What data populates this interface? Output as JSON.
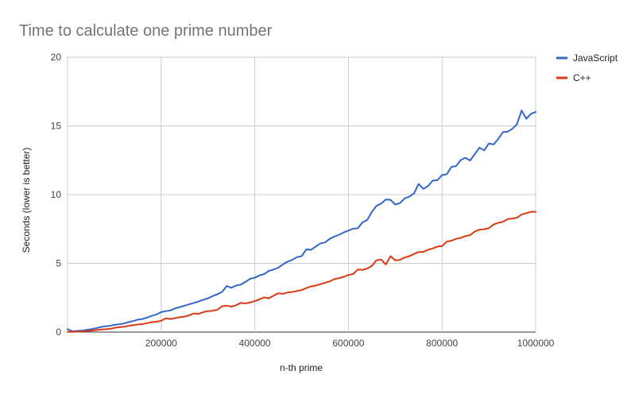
{
  "chart_data": {
    "type": "line",
    "title": "Time to calculate one prime number",
    "xlabel": "n-th prime",
    "ylabel": "Seconds (lower is better)",
    "xlim": [
      0,
      1000000
    ],
    "ylim": [
      0,
      20
    ],
    "xticks": [
      200000,
      400000,
      600000,
      800000,
      1000000
    ],
    "yticks": [
      0,
      5,
      10,
      15,
      20
    ],
    "grid": true,
    "legend_position": "right-top",
    "series": [
      {
        "name": "JavaScript",
        "color": "#3366cc",
        "points": [
          [
            0,
            0.2
          ],
          [
            10000,
            0.06
          ],
          [
            20000,
            0.08
          ],
          [
            30000,
            0.1
          ],
          [
            40000,
            0.15
          ],
          [
            50000,
            0.2
          ],
          [
            60000,
            0.27
          ],
          [
            70000,
            0.35
          ],
          [
            80000,
            0.42
          ],
          [
            90000,
            0.45
          ],
          [
            100000,
            0.52
          ],
          [
            110000,
            0.56
          ],
          [
            120000,
            0.62
          ],
          [
            130000,
            0.72
          ],
          [
            140000,
            0.8
          ],
          [
            150000,
            0.9
          ],
          [
            160000,
            0.95
          ],
          [
            170000,
            1.05
          ],
          [
            180000,
            1.18
          ],
          [
            190000,
            1.28
          ],
          [
            200000,
            1.45
          ],
          [
            210000,
            1.52
          ],
          [
            220000,
            1.58
          ],
          [
            230000,
            1.72
          ],
          [
            240000,
            1.82
          ],
          [
            250000,
            1.92
          ],
          [
            260000,
            2.02
          ],
          [
            270000,
            2.12
          ],
          [
            280000,
            2.22
          ],
          [
            290000,
            2.35
          ],
          [
            300000,
            2.45
          ],
          [
            310000,
            2.62
          ],
          [
            320000,
            2.75
          ],
          [
            330000,
            2.92
          ],
          [
            340000,
            3.35
          ],
          [
            350000,
            3.22
          ],
          [
            360000,
            3.38
          ],
          [
            370000,
            3.45
          ],
          [
            380000,
            3.65
          ],
          [
            390000,
            3.88
          ],
          [
            400000,
            3.95
          ],
          [
            410000,
            4.12
          ],
          [
            420000,
            4.22
          ],
          [
            430000,
            4.45
          ],
          [
            440000,
            4.55
          ],
          [
            450000,
            4.68
          ],
          [
            460000,
            4.92
          ],
          [
            470000,
            5.12
          ],
          [
            480000,
            5.25
          ],
          [
            490000,
            5.45
          ],
          [
            500000,
            5.52
          ],
          [
            510000,
            6.02
          ],
          [
            520000,
            5.98
          ],
          [
            530000,
            6.22
          ],
          [
            540000,
            6.45
          ],
          [
            550000,
            6.52
          ],
          [
            560000,
            6.78
          ],
          [
            570000,
            6.95
          ],
          [
            580000,
            7.08
          ],
          [
            590000,
            7.25
          ],
          [
            600000,
            7.38
          ],
          [
            610000,
            7.52
          ],
          [
            620000,
            7.55
          ],
          [
            630000,
            7.98
          ],
          [
            640000,
            8.15
          ],
          [
            650000,
            8.75
          ],
          [
            660000,
            9.18
          ],
          [
            670000,
            9.35
          ],
          [
            680000,
            9.65
          ],
          [
            690000,
            9.62
          ],
          [
            700000,
            9.28
          ],
          [
            710000,
            9.38
          ],
          [
            720000,
            9.72
          ],
          [
            730000,
            9.85
          ],
          [
            740000,
            10.08
          ],
          [
            750000,
            10.78
          ],
          [
            760000,
            10.42
          ],
          [
            770000,
            10.62
          ],
          [
            780000,
            11.02
          ],
          [
            790000,
            11.05
          ],
          [
            800000,
            11.42
          ],
          [
            810000,
            11.48
          ],
          [
            820000,
            12.02
          ],
          [
            830000,
            12.08
          ],
          [
            840000,
            12.52
          ],
          [
            850000,
            12.68
          ],
          [
            860000,
            12.48
          ],
          [
            870000,
            12.95
          ],
          [
            880000,
            13.42
          ],
          [
            890000,
            13.22
          ],
          [
            900000,
            13.72
          ],
          [
            910000,
            13.65
          ],
          [
            920000,
            14.05
          ],
          [
            930000,
            14.55
          ],
          [
            940000,
            14.58
          ],
          [
            950000,
            14.78
          ],
          [
            960000,
            15.12
          ],
          [
            970000,
            16.12
          ],
          [
            980000,
            15.52
          ],
          [
            990000,
            15.88
          ],
          [
            1000000,
            16.02
          ]
        ]
      },
      {
        "name": "C++",
        "color": "#dc3912",
        "points": [
          [
            0,
            0.02
          ],
          [
            10000,
            0.02
          ],
          [
            20000,
            0.03
          ],
          [
            30000,
            0.05
          ],
          [
            40000,
            0.07
          ],
          [
            50000,
            0.1
          ],
          [
            60000,
            0.14
          ],
          [
            70000,
            0.18
          ],
          [
            80000,
            0.2
          ],
          [
            90000,
            0.23
          ],
          [
            100000,
            0.3
          ],
          [
            110000,
            0.35
          ],
          [
            120000,
            0.38
          ],
          [
            130000,
            0.45
          ],
          [
            140000,
            0.5
          ],
          [
            150000,
            0.55
          ],
          [
            160000,
            0.58
          ],
          [
            170000,
            0.65
          ],
          [
            180000,
            0.72
          ],
          [
            190000,
            0.75
          ],
          [
            200000,
            0.82
          ],
          [
            210000,
            1.0
          ],
          [
            220000,
            0.95
          ],
          [
            230000,
            1.02
          ],
          [
            240000,
            1.08
          ],
          [
            250000,
            1.12
          ],
          [
            260000,
            1.22
          ],
          [
            270000,
            1.35
          ],
          [
            280000,
            1.32
          ],
          [
            290000,
            1.45
          ],
          [
            300000,
            1.52
          ],
          [
            310000,
            1.55
          ],
          [
            320000,
            1.62
          ],
          [
            330000,
            1.88
          ],
          [
            340000,
            1.92
          ],
          [
            350000,
            1.85
          ],
          [
            360000,
            1.95
          ],
          [
            370000,
            2.12
          ],
          [
            380000,
            2.08
          ],
          [
            390000,
            2.15
          ],
          [
            400000,
            2.25
          ],
          [
            410000,
            2.38
          ],
          [
            420000,
            2.52
          ],
          [
            430000,
            2.45
          ],
          [
            440000,
            2.65
          ],
          [
            450000,
            2.82
          ],
          [
            460000,
            2.78
          ],
          [
            470000,
            2.88
          ],
          [
            480000,
            2.92
          ],
          [
            490000,
            2.98
          ],
          [
            500000,
            3.05
          ],
          [
            510000,
            3.2
          ],
          [
            520000,
            3.32
          ],
          [
            530000,
            3.38
          ],
          [
            540000,
            3.48
          ],
          [
            550000,
            3.58
          ],
          [
            560000,
            3.68
          ],
          [
            570000,
            3.85
          ],
          [
            580000,
            3.92
          ],
          [
            590000,
            4.02
          ],
          [
            600000,
            4.15
          ],
          [
            610000,
            4.22
          ],
          [
            620000,
            4.55
          ],
          [
            630000,
            4.52
          ],
          [
            640000,
            4.62
          ],
          [
            650000,
            4.82
          ],
          [
            660000,
            5.22
          ],
          [
            670000,
            5.28
          ],
          [
            680000,
            4.92
          ],
          [
            690000,
            5.52
          ],
          [
            700000,
            5.22
          ],
          [
            710000,
            5.25
          ],
          [
            720000,
            5.42
          ],
          [
            730000,
            5.52
          ],
          [
            740000,
            5.68
          ],
          [
            750000,
            5.82
          ],
          [
            760000,
            5.82
          ],
          [
            770000,
            5.98
          ],
          [
            780000,
            6.08
          ],
          [
            790000,
            6.22
          ],
          [
            800000,
            6.25
          ],
          [
            810000,
            6.58
          ],
          [
            820000,
            6.65
          ],
          [
            830000,
            6.78
          ],
          [
            840000,
            6.85
          ],
          [
            850000,
            6.98
          ],
          [
            860000,
            7.05
          ],
          [
            870000,
            7.32
          ],
          [
            880000,
            7.45
          ],
          [
            890000,
            7.48
          ],
          [
            900000,
            7.55
          ],
          [
            910000,
            7.82
          ],
          [
            920000,
            7.95
          ],
          [
            930000,
            8.02
          ],
          [
            940000,
            8.22
          ],
          [
            950000,
            8.25
          ],
          [
            960000,
            8.32
          ],
          [
            970000,
            8.55
          ],
          [
            980000,
            8.65
          ],
          [
            990000,
            8.75
          ],
          [
            1000000,
            8.75
          ]
        ]
      }
    ]
  }
}
